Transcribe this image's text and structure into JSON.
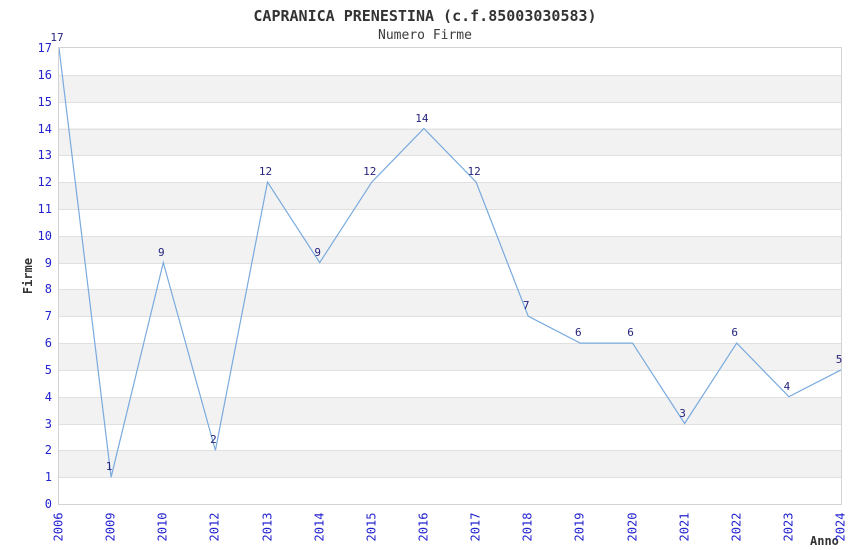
{
  "chart_data": {
    "type": "line",
    "title": "CAPRANICA PRENESTINA (c.f.85003030583)",
    "subtitle": "Numero Firme",
    "xlabel": "Anno",
    "ylabel": "Firme",
    "categories": [
      "2006",
      "2009",
      "2010",
      "2012",
      "2013",
      "2014",
      "2015",
      "2016",
      "2017",
      "2018",
      "2019",
      "2020",
      "2021",
      "2022",
      "2023",
      "2024"
    ],
    "values": [
      17,
      1,
      9,
      2,
      12,
      9,
      12,
      14,
      12,
      7,
      6,
      6,
      3,
      6,
      4,
      5
    ],
    "series_name": "Numero Firme",
    "ylim": [
      0,
      17
    ],
    "y_tick_step": 1,
    "legend": "none",
    "grid": "horizontal-gridlines-with-alternating-bands",
    "point_labels_visible": true,
    "colors": {
      "line": "#79aade",
      "tick_label": "#2323cf",
      "data_label": "#24247d",
      "axis_title": "#333333",
      "title": "#333333",
      "band": "#f2f2f2",
      "gridline": "#e0e0e0",
      "plot_border": "#d3d3d3",
      "background": "#ffffff"
    }
  }
}
